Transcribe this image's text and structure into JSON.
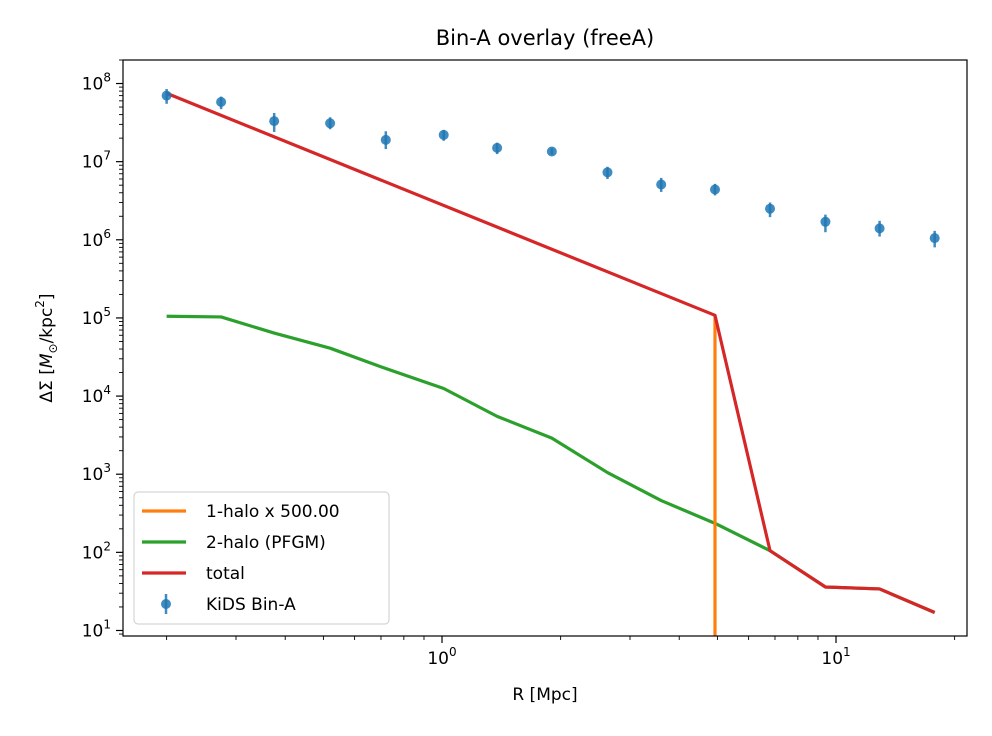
{
  "chart_data": {
    "type": "line",
    "title": "Bin-A overlay (freeA)",
    "xlabel": "R [Mpc]",
    "ylabel_parts": {
      "prefix": "ΔΣ [",
      "m": "M",
      "sun": "⊙",
      "mid": "/kpc",
      "exp": "2",
      "suffix": "]"
    },
    "x_scale": "log",
    "y_scale": "log",
    "xlim": [
      0.155,
      21.5
    ],
    "ylim": [
      8.5,
      200000000.0
    ],
    "x_ticks": [
      {
        "value": 1,
        "base": "10",
        "exp": "0"
      },
      {
        "value": 10,
        "base": "10",
        "exp": "1"
      }
    ],
    "y_ticks": [
      {
        "value": 10,
        "base": "10",
        "exp": "1"
      },
      {
        "value": 100,
        "base": "10",
        "exp": "2"
      },
      {
        "value": 1000,
        "base": "10",
        "exp": "3"
      },
      {
        "value": 10000,
        "base": "10",
        "exp": "4"
      },
      {
        "value": 100000,
        "base": "10",
        "exp": "5"
      },
      {
        "value": 1000000,
        "base": "10",
        "exp": "6"
      },
      {
        "value": 10000000,
        "base": "10",
        "exp": "7"
      },
      {
        "value": 100000000,
        "base": "10",
        "exp": "8"
      }
    ],
    "grid": false,
    "legend_position": "lower-left",
    "series": [
      {
        "name": "1-halo x 500.00",
        "kind": "line",
        "color": "#ff7f0e",
        "x": [
          4.93,
          4.93
        ],
        "y": [
          108000,
          8.5
        ]
      },
      {
        "name": "2-halo (PFGM)",
        "kind": "line",
        "color": "#2ca02c",
        "x": [
          0.2,
          0.275,
          0.375,
          0.52,
          0.72,
          1.01,
          1.38,
          1.9,
          2.63,
          3.6,
          4.93,
          6.8,
          9.4,
          12.9,
          17.8
        ],
        "y": [
          105000,
          103000,
          64000,
          41000,
          22500,
          12500,
          5500,
          2900,
          1050,
          460,
          235,
          105,
          36,
          34,
          17
        ]
      },
      {
        "name": "total",
        "kind": "line",
        "color": "#d62728",
        "x": [
          0.2,
          4.93,
          6.8,
          9.4,
          12.9,
          17.8
        ],
        "y": [
          75000000,
          108000,
          105,
          36,
          34,
          17
        ]
      },
      {
        "name": "KiDS Bin-A",
        "kind": "errorbar",
        "color": "#1f77b4",
        "points": [
          {
            "x": 0.2,
            "y": 70000000,
            "lo": 55000000,
            "hi": 85000000
          },
          {
            "x": 0.275,
            "y": 58000000,
            "lo": 47000000,
            "hi": 68000000
          },
          {
            "x": 0.375,
            "y": 33000000,
            "lo": 24000000,
            "hi": 42000000
          },
          {
            "x": 0.52,
            "y": 31000000,
            "lo": 26000000,
            "hi": 37000000
          },
          {
            "x": 0.72,
            "y": 19000000,
            "lo": 14500000,
            "hi": 24500000
          },
          {
            "x": 1.01,
            "y": 22000000,
            "lo": 18500000,
            "hi": 25500000
          },
          {
            "x": 1.38,
            "y": 15000000,
            "lo": 12500000,
            "hi": 17500000
          },
          {
            "x": 1.9,
            "y": 13500000,
            "lo": 12200000,
            "hi": 14800000
          },
          {
            "x": 2.63,
            "y": 7300000,
            "lo": 6000000,
            "hi": 8600000
          },
          {
            "x": 3.6,
            "y": 5100000,
            "lo": 4100000,
            "hi": 6200000
          },
          {
            "x": 4.93,
            "y": 4400000,
            "lo": 3700000,
            "hi": 5200000
          },
          {
            "x": 6.8,
            "y": 2500000,
            "lo": 1950000,
            "hi": 3000000
          },
          {
            "x": 9.4,
            "y": 1700000,
            "lo": 1250000,
            "hi": 2100000
          },
          {
            "x": 12.9,
            "y": 1400000,
            "lo": 1100000,
            "hi": 1750000
          },
          {
            "x": 17.8,
            "y": 1050000,
            "lo": 800000,
            "hi": 1300000
          }
        ]
      }
    ]
  }
}
